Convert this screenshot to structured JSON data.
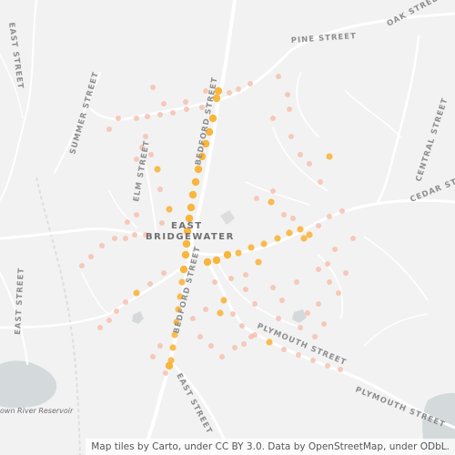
{
  "town_label": [
    "EAST",
    "BRIDGEWATER"
  ],
  "street_labels": [
    "OAK STREET",
    "PINE STREET",
    "EAST STREET",
    "SUMMER STREET",
    "ELM STREET",
    "BEDFORD STREET",
    "CENTRAL STREET",
    "CEDAR STREET",
    "EAST STREET",
    "BEDFORD STREET",
    "PLYMOUTH STREET",
    "EAST STREET",
    "PLYMOUTH STREET"
  ],
  "water_label": "own River Reservoir",
  "attribution": "Map tiles by Carto, under CC BY 3.0. Data by OpenStreetMap, under ODbL.",
  "colors": {
    "land": "#f2f2f2",
    "road": "#ffffff",
    "water": "#d4dadc",
    "heat_low": "#f7b9a6",
    "heat_high": "#f9b233"
  },
  "heat_intensity_levels": [
    0.35,
    0.6,
    1.0
  ]
}
